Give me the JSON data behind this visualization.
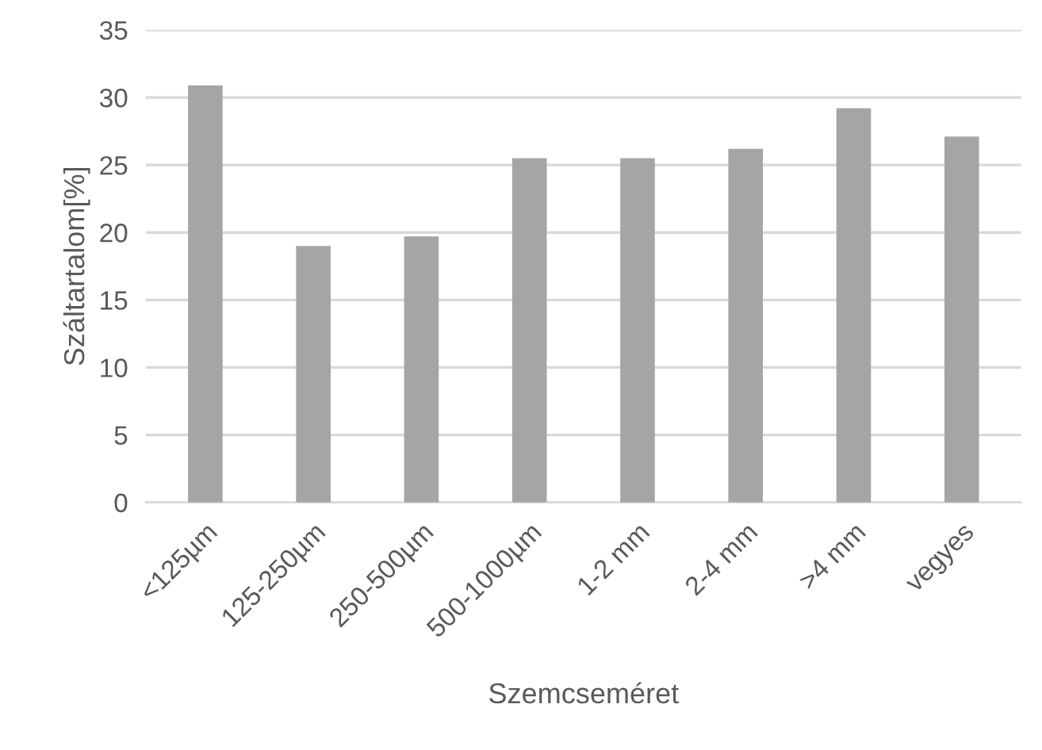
{
  "chart_data": {
    "type": "bar",
    "xlabel": "Szemcseméret",
    "ylabel": "Száltartalom[%]",
    "categories": [
      "<125µm",
      "125-250µm",
      "250-500µm",
      "500-1000µm",
      "1-2 mm",
      "2-4 mm",
      ">4 mm",
      "vegyes"
    ],
    "values": [
      30.9,
      19.0,
      19.7,
      25.5,
      25.5,
      26.2,
      29.2,
      27.1
    ],
    "color": "#a5a5a5",
    "ylim": [
      0,
      35
    ],
    "yticks": [
      0,
      5,
      10,
      15,
      20,
      25,
      30,
      35
    ],
    "grid": "y"
  }
}
